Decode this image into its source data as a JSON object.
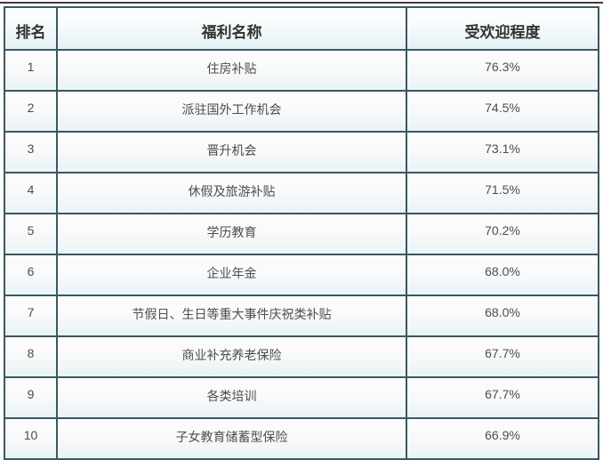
{
  "chart_data": {
    "type": "table",
    "title": "",
    "columns": [
      "排名",
      "福利名称",
      "受欢迎程度"
    ],
    "rows": [
      {
        "rank": "1",
        "benefit": "住房补贴",
        "popularity": "76.3%"
      },
      {
        "rank": "2",
        "benefit": "派驻国外工作机会",
        "popularity": "74.5%"
      },
      {
        "rank": "3",
        "benefit": "晋升机会",
        "popularity": "73.1%"
      },
      {
        "rank": "4",
        "benefit": "休假及旅游补贴",
        "popularity": "71.5%"
      },
      {
        "rank": "5",
        "benefit": "学历教育",
        "popularity": "70.2%"
      },
      {
        "rank": "6",
        "benefit": "企业年金",
        "popularity": "68.0%"
      },
      {
        "rank": "7",
        "benefit": "节假日、生日等重大事件庆祝类补贴",
        "popularity": "68.0%"
      },
      {
        "rank": "8",
        "benefit": "商业补充养老保险",
        "popularity": "67.7%"
      },
      {
        "rank": "9",
        "benefit": "各类培训",
        "popularity": "67.7%"
      },
      {
        "rank": "10",
        "benefit": "子女教育储蓄型保险",
        "popularity": "66.9%"
      }
    ]
  },
  "table": {
    "columns": [
      {
        "key": "rank",
        "label": "排名"
      },
      {
        "key": "benefit",
        "label": "福利名称"
      },
      {
        "key": "popularity",
        "label": "受欢迎程度"
      }
    ]
  },
  "colors": {
    "table_border": "#3a5860",
    "top_line": "#46393d",
    "header_text": "#333333",
    "body_text": "#4d4d4d",
    "cell_background_top": "#fdfcfc",
    "cell_background_bottom": "#e9f3f7"
  }
}
